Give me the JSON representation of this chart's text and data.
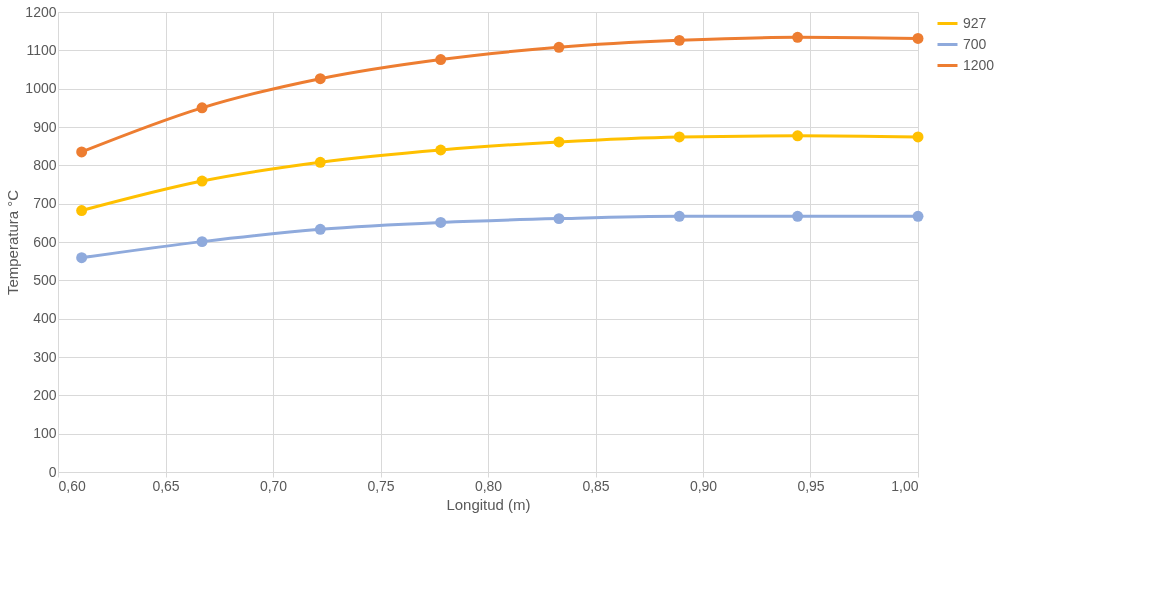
{
  "chart_data": {
    "type": "line",
    "xlabel": "Longitud (m)",
    "ylabel": "Temperatura °C",
    "x": [
      0.611,
      0.667,
      0.722,
      0.778,
      0.833,
      0.889,
      0.944,
      1.0
    ],
    "series": [
      {
        "name": "927",
        "color": "#ffc000",
        "values": [
          682,
          759,
          808,
          840,
          861,
          874,
          877,
          874
        ]
      },
      {
        "name": "700",
        "color": "#8faadc",
        "values": [
          559,
          601,
          633,
          651,
          661,
          667,
          667,
          667
        ]
      },
      {
        "name": "1200",
        "color": "#ed7d31",
        "values": [
          835,
          950,
          1026,
          1076,
          1108,
          1126,
          1134,
          1131
        ]
      }
    ],
    "xlim": [
      0.6,
      1.0
    ],
    "xticks": [
      {
        "value": 0.6,
        "label": "0,60"
      },
      {
        "value": 0.65,
        "label": "0,65"
      },
      {
        "value": 0.7,
        "label": "0,70"
      },
      {
        "value": 0.75,
        "label": "0,75"
      },
      {
        "value": 0.8,
        "label": "0,80"
      },
      {
        "value": 0.85,
        "label": "0,85"
      },
      {
        "value": 0.9,
        "label": "0,90"
      },
      {
        "value": 0.95,
        "label": "0,95"
      },
      {
        "value": 1.0,
        "label": "1,00"
      }
    ],
    "ylim": [
      0,
      1200
    ],
    "yticks": [
      0,
      100,
      200,
      300,
      400,
      500,
      600,
      700,
      800,
      900,
      1000,
      1100,
      1200
    ],
    "grid": true,
    "legend": "right",
    "marker": "circle",
    "line_style": "solid"
  }
}
